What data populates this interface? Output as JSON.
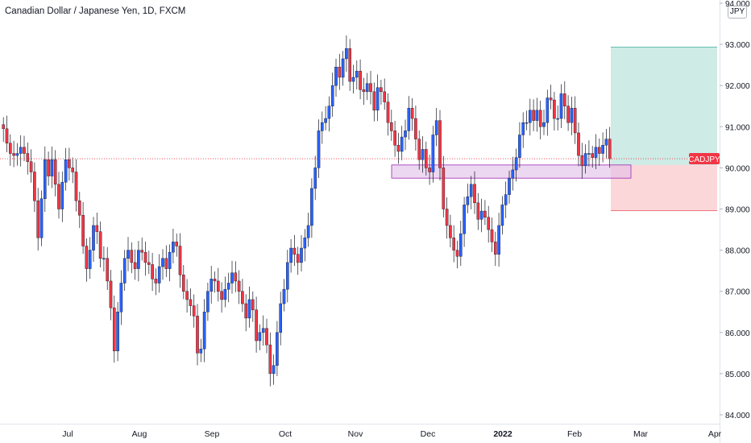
{
  "header": {
    "title": "Canadian Dollar / Japanese Yen, 1D, FXCM",
    "currency": "JPY"
  },
  "chart_data": {
    "type": "candlestick",
    "symbol": "CADJPY",
    "interval": "1D",
    "source": "FXCM",
    "ylim": [
      83.9,
      94.1
    ],
    "y_ticks": [
      "84.000",
      "85.000",
      "86.000",
      "87.000",
      "88.000",
      "89.000",
      "90.000",
      "91.000",
      "92.000",
      "93.000",
      "94.000"
    ],
    "x_ticks": [
      "Jul",
      "Aug",
      "Sep",
      "Oct",
      "Nov",
      "Dec",
      "2022",
      "Feb",
      "Mar",
      "Apr"
    ],
    "last_price": {
      "label": "CADJPY",
      "value": "90.222"
    },
    "price_labels": [
      {
        "value": "92.930",
        "role": "target"
      },
      {
        "value": "90.069",
        "role": "entry"
      },
      {
        "value": "88.958",
        "role": "stop"
      }
    ],
    "long_position": {
      "entry": 90.069,
      "target": 92.93,
      "stop": 88.958
    },
    "support_zone": {
      "low": 89.75,
      "high": 90.07
    },
    "candles_open": [
      91.05,
      90.95,
      90.6,
      90.35,
      90.3,
      90.35,
      90.5,
      90.35,
      90.15,
      89.9,
      89.2,
      88.3,
      89.25,
      90.2,
      89.8,
      90.2,
      89.6,
      89.0,
      89.65,
      90.2,
      90.0,
      89.9,
      89.2,
      88.85,
      88.1,
      87.55,
      88.0,
      88.6,
      88.45,
      87.8,
      87.8,
      87.25,
      86.6,
      85.55,
      86.5,
      87.2,
      87.8,
      88.0,
      87.7,
      87.55,
      88.0,
      87.95,
      87.7,
      87.65,
      87.3,
      87.2,
      87.6,
      87.8,
      87.55,
      87.95,
      88.2,
      88.1,
      87.4,
      87.0,
      86.8,
      86.65,
      86.4,
      85.5,
      85.6,
      86.5,
      87.0,
      87.3,
      87.25,
      87.0,
      86.8,
      87.05,
      87.2,
      87.45,
      87.25,
      87.0,
      86.7,
      86.35,
      86.8,
      86.55,
      85.8,
      86.0,
      86.1,
      85.7,
      85.0,
      85.2,
      86.0,
      86.7,
      87.05,
      87.7,
      88.05,
      87.9,
      87.7,
      88.05,
      88.3,
      88.6,
      89.5,
      90.0,
      90.9,
      91.1,
      91.2,
      91.5,
      92.0,
      92.45,
      92.2,
      92.65,
      92.9,
      92.1,
      92.2,
      92.35,
      91.9,
      91.85,
      92.05,
      91.85,
      91.4,
      91.95,
      91.85,
      91.6,
      91.1,
      90.9,
      90.55,
      90.4,
      90.75,
      90.9,
      91.45,
      91.2,
      90.7,
      90.2,
      90.45,
      90.0,
      89.9,
      90.8,
      91.15,
      90.0,
      89.0,
      88.6,
      88.3,
      88.0,
      87.85,
      88.4,
      89.1,
      89.3,
      89.6,
      89.15,
      88.75,
      88.95,
      88.8,
      88.5,
      88.2,
      87.9,
      88.6,
      89.1,
      89.35,
      89.75,
      89.95,
      90.25,
      90.8,
      91.1,
      91.1,
      91.4,
      91.15,
      91.4,
      91.0,
      91.1,
      91.7,
      91.65,
      91.2,
      91.2,
      91.8,
      91.5,
      91.1,
      91.45,
      90.85,
      90.3,
      90.05,
      90.35,
      90.35,
      90.25,
      90.5,
      90.35,
      90.55,
      90.7
    ],
    "candles_close": [
      90.95,
      90.6,
      90.35,
      90.3,
      90.35,
      90.5,
      90.35,
      90.15,
      89.9,
      89.2,
      88.3,
      89.25,
      90.2,
      89.8,
      90.2,
      89.6,
      89.0,
      89.65,
      90.2,
      90.0,
      89.9,
      89.2,
      88.85,
      88.1,
      87.55,
      88.0,
      88.6,
      88.45,
      87.8,
      87.8,
      87.25,
      86.6,
      85.55,
      86.5,
      87.2,
      87.8,
      88.0,
      87.7,
      87.55,
      88.0,
      87.95,
      87.7,
      87.65,
      87.3,
      87.2,
      87.6,
      87.8,
      87.55,
      87.95,
      88.2,
      88.1,
      87.4,
      87.0,
      86.8,
      86.65,
      86.4,
      85.5,
      85.6,
      86.5,
      87.0,
      87.3,
      87.25,
      87.0,
      86.8,
      87.05,
      87.2,
      87.45,
      87.25,
      87.0,
      86.7,
      86.35,
      86.8,
      86.55,
      85.8,
      86.0,
      86.1,
      85.7,
      85.0,
      85.2,
      86.0,
      86.7,
      87.05,
      87.7,
      88.05,
      87.9,
      87.7,
      88.05,
      88.3,
      88.6,
      89.5,
      90.0,
      90.9,
      91.1,
      91.2,
      91.5,
      92.0,
      92.45,
      92.2,
      92.65,
      92.9,
      92.1,
      92.2,
      92.35,
      91.9,
      91.85,
      92.05,
      91.85,
      91.4,
      91.95,
      91.85,
      91.6,
      91.1,
      90.9,
      90.55,
      90.4,
      90.75,
      90.9,
      91.45,
      91.2,
      90.7,
      90.2,
      90.45,
      90.0,
      89.9,
      90.8,
      91.15,
      90.0,
      89.0,
      88.6,
      88.3,
      88.0,
      87.85,
      88.4,
      89.1,
      89.3,
      89.6,
      89.15,
      88.75,
      88.95,
      88.8,
      88.5,
      88.2,
      87.9,
      88.6,
      89.1,
      89.35,
      89.75,
      89.95,
      90.25,
      90.8,
      91.1,
      91.1,
      91.4,
      91.15,
      91.4,
      91.0,
      91.1,
      91.7,
      91.65,
      91.2,
      91.2,
      91.8,
      91.5,
      91.1,
      91.45,
      90.85,
      90.3,
      90.05,
      90.35,
      90.35,
      90.25,
      90.5,
      90.35,
      90.55,
      90.7,
      90.22
    ]
  }
}
